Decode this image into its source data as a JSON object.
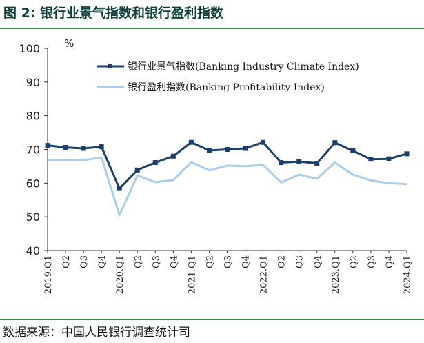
{
  "title": "图 2:  银行业景气指数和银行盈利指数",
  "source": "数据来源：中国人民银行调查统计司",
  "chart_data": {
    "type": "line",
    "unit": "%",
    "ylim": [
      40,
      100
    ],
    "yticks": [
      40,
      50,
      60,
      70,
      80,
      90,
      100
    ],
    "categories": [
      "2019.Q1",
      "Q2",
      "Q3",
      "Q4",
      "2020.Q1",
      "Q2",
      "Q3",
      "Q4",
      "2021.Q1",
      "Q2",
      "Q3",
      "Q4",
      "2022.Q1",
      "Q2",
      "Q3",
      "Q4",
      "2023.Q1",
      "Q2",
      "Q3",
      "Q4",
      "2024.Q1"
    ],
    "legend_position": "top-right",
    "grid": false,
    "series": [
      {
        "name": "银行业景气指数(Banking Industry Climate Index)",
        "color": "#1c3f6e",
        "marker": "square",
        "values": [
          71.2,
          70.6,
          70.3,
          70.8,
          58.4,
          63.9,
          66.1,
          68.0,
          72.1,
          69.7,
          70.0,
          70.3,
          72.1,
          66.1,
          66.4,
          65.9,
          72.0,
          69.6,
          67.1,
          67.2,
          68.7
        ]
      },
      {
        "name": "银行盈利指数(Banking Profitability Index)",
        "color": "#a9cdef",
        "marker": "none",
        "values": [
          66.8,
          66.8,
          66.8,
          67.6,
          50.5,
          62.3,
          60.3,
          60.9,
          66.2,
          63.8,
          65.2,
          65.0,
          65.4,
          60.2,
          62.5,
          61.3,
          66.1,
          62.5,
          60.8,
          60.0,
          59.7
        ]
      }
    ]
  }
}
